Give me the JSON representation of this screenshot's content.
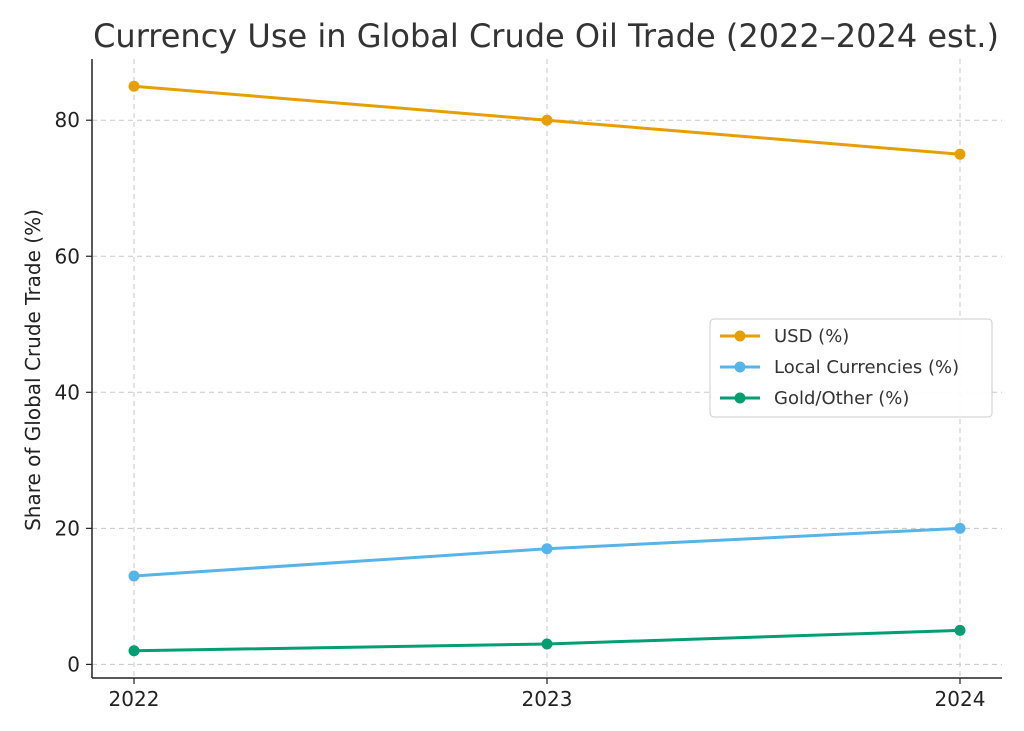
{
  "chart_data": {
    "type": "line",
    "title": "Currency Use in Global Crude Oil Trade (2022–2024 est.)",
    "xlabel": "",
    "ylabel": "Share of Global Crude Trade (%)",
    "categories": [
      "2022",
      "2023",
      "2024"
    ],
    "y_ticks": [
      0,
      20,
      40,
      60,
      80
    ],
    "ylim": [
      -2,
      89
    ],
    "grid": true,
    "legend_position": "right",
    "series": [
      {
        "name": "USD (%)",
        "values": [
          85,
          80,
          75
        ],
        "color": "#E69F00"
      },
      {
        "name": "Local Currencies (%)",
        "values": [
          13,
          17,
          20
        ],
        "color": "#56B4E9"
      },
      {
        "name": "Gold/Other (%)",
        "values": [
          2,
          3,
          5
        ],
        "color": "#009E73"
      }
    ]
  }
}
